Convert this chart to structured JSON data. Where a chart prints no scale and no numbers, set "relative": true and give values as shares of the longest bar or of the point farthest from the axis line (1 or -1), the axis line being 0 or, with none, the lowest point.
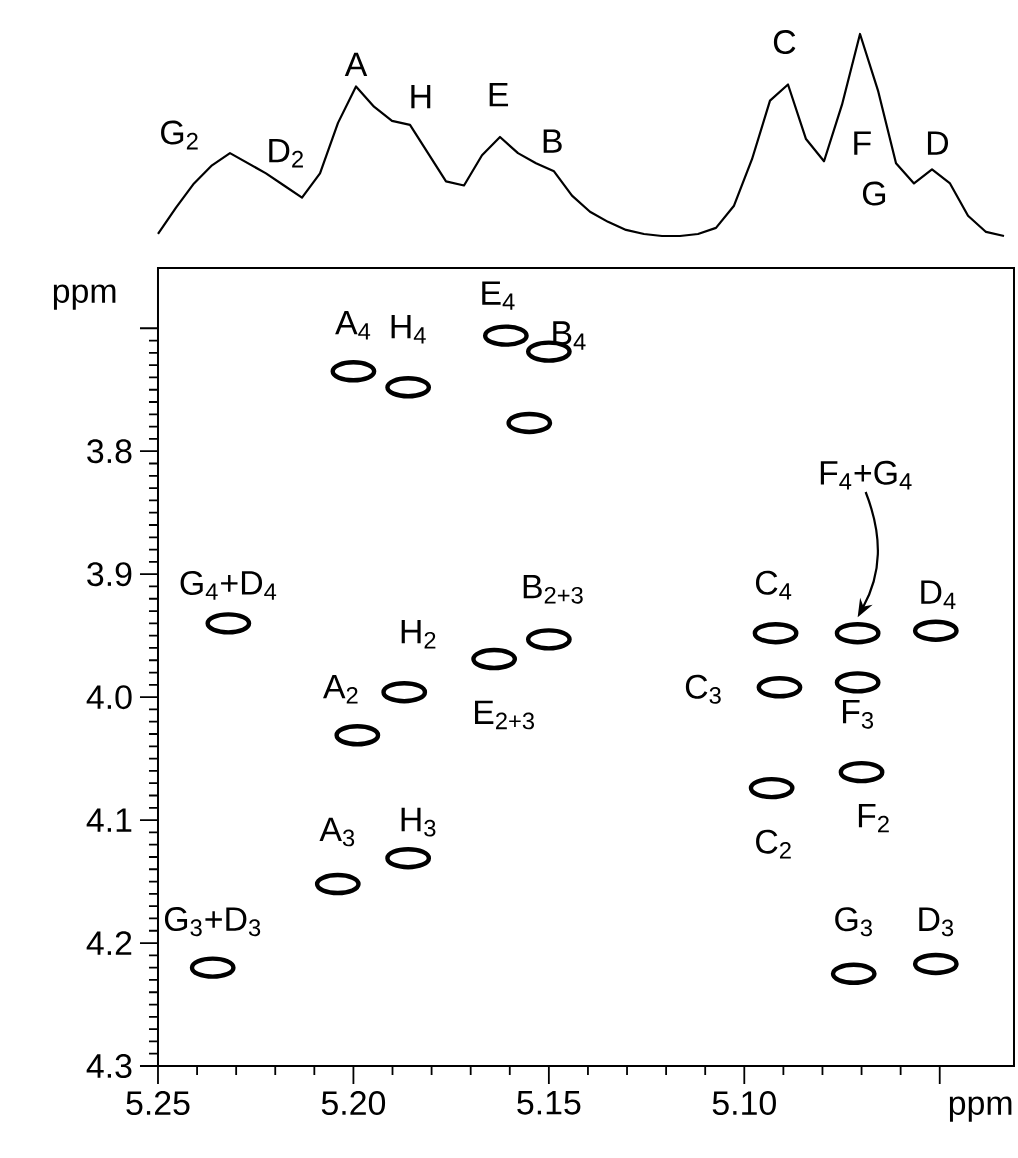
{
  "chart_data": [
    {
      "type": "line",
      "relative": true,
      "color": "#000000",
      "categories": [
        null,
        null,
        null,
        null,
        null,
        null,
        null,
        null,
        null,
        null,
        null,
        null,
        null,
        null,
        null,
        null,
        null,
        null,
        null,
        null,
        null,
        null,
        null,
        null,
        null,
        null,
        null,
        null,
        null,
        null,
        null,
        null,
        null,
        null,
        null,
        null,
        null,
        null,
        null,
        null,
        null,
        null,
        null,
        null,
        null,
        null,
        null,
        null
      ],
      "values": [
        0.01,
        0.14,
        0.26,
        0.35,
        0.41,
        0.36,
        0.31,
        0.25,
        0.19,
        0.31,
        0.56,
        0.74,
        0.64,
        0.57,
        0.55,
        0.41,
        0.27,
        0.25,
        0.4,
        0.49,
        0.41,
        0.36,
        0.32,
        0.2,
        0.12,
        0.07,
        0.03,
        0.01,
        0,
        0,
        0.01,
        0.04,
        0.15,
        0.38,
        0.67,
        0.75,
        0.48,
        0.37,
        0.65,
        1.0,
        0.72,
        0.36,
        0.26,
        0.33,
        0.26,
        0.1,
        0.02,
        0
      ],
      "annotations": [
        "G$_{2}$",
        "D$_{2}$",
        "A",
        "H",
        "E",
        "B",
        "C",
        "F",
        "G",
        "D"
      ]
    },
    {
      "type": "scatter",
      "color": "#000000",
      "marker": "circle",
      "xlabel": "ppm",
      "ylabel": "ppm",
      "xlim": [
        5.25,
        5.031
      ],
      "ylim": [
        4.3,
        3.651
      ],
      "xticks": [
        5.25,
        {
          "value": 5.2,
          "label": "5.20"
        },
        5.15,
        {
          "value": 5.1,
          "label": "5.10"
        },
        {
          "value": 5.05,
          "label": null
        }
      ],
      "yticks": [
        {
          "value": 3.7,
          "label": null
        },
        3.8,
        3.9,
        {
          "value": 4.0,
          "label": "4.0"
        },
        4.1,
        4.2,
        4.3
      ],
      "x": [
        5.2,
        5.186,
        5.161,
        5.15,
        5.232,
        5.187,
        5.199,
        5.164,
        5.15,
        5.204,
        5.186,
        5.236,
        5.092,
        5.071,
        5.051,
        5.091,
        5.071,
        5.093,
        5.07,
        5.072,
        5.051,
        5.155
      ],
      "values": [
        3.735,
        3.748,
        3.706,
        3.719,
        3.94,
        3.996,
        4.031,
        3.969,
        3.953,
        4.152,
        4.131,
        4.22,
        3.948,
        3.948,
        3.946,
        3.992,
        3.988,
        4.074,
        4.061,
        4.225,
        4.217,
        3.777
      ],
      "annotations": [
        {
          "text": "A$_{4}$",
          "x": 5.2,
          "y": 3.735
        },
        {
          "text": "H$_{4}$",
          "x": 5.186,
          "y": 3.748
        },
        {
          "text": "E$_{4}$",
          "x": 5.161,
          "y": 3.706
        },
        {
          "text": "B$_{4}$",
          "x": 5.15,
          "y": 3.719
        },
        {
          "text": "G$_{4}$+D$_{4}$",
          "x": 5.232,
          "y": 3.94
        },
        {
          "text": "H$_{2}$",
          "x": 5.187,
          "y": 3.996
        },
        {
          "text": "A$_{2}$",
          "x": 5.199,
          "y": 4.031
        },
        {
          "text": "E$_{2+3}$",
          "x": 5.164,
          "y": 3.969
        },
        {
          "text": "B$_{2+3}$",
          "x": 5.15,
          "y": 3.953
        },
        {
          "text": "A$_{3}$",
          "x": 5.204,
          "y": 4.152
        },
        {
          "text": "H$_{3}$",
          "x": 5.186,
          "y": 4.131
        },
        {
          "text": "G$_{3}$+D$_{3}$",
          "x": 5.236,
          "y": 4.22
        },
        {
          "text": "C$_{4}$",
          "x": 5.092,
          "y": 3.948
        },
        {
          "text": "F$_{4}$+G$_{4}$",
          "x": 5.071,
          "y": 3.935
        },
        {
          "text": "D$_{4}$",
          "x": 5.051,
          "y": 3.946
        },
        {
          "text": "C$_{3}$",
          "x": 5.091,
          "y": 3.992
        },
        {
          "text": "F$_{3}$",
          "x": 5.071,
          "y": 3.988
        },
        {
          "text": "C$_{2}$",
          "x": 5.093,
          "y": 4.074
        },
        {
          "text": "F$_{2}$",
          "x": 5.07,
          "y": 4.061
        },
        {
          "text": "G$_{3}$",
          "x": 5.072,
          "y": 4.225
        },
        {
          "text": "D$_{3}$",
          "x": 5.051,
          "y": 4.217
        }
      ]
    }
  ]
}
